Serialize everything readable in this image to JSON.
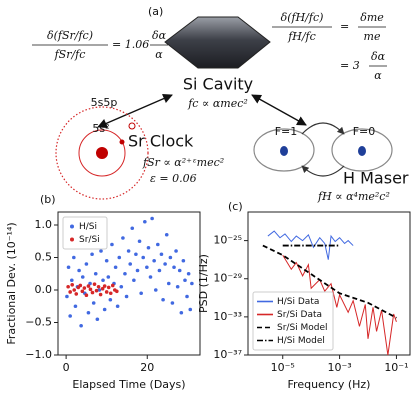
{
  "diagram": {
    "panel_label": "(a)",
    "cavity": {
      "label": "Si Cavity",
      "formula": "fc ∝ αmec²"
    },
    "sr_equation": {
      "lhs_num": "δ(fSr/fc)",
      "lhs_den": "fSr/fc",
      "coef": "= 1.06",
      "rhs_num": "δα",
      "rhs_den": "α"
    },
    "h_equation": {
      "lhs_num": "δ(fH/fc)",
      "lhs_den": "fH/fc",
      "eq": "=",
      "rhs_num": "δme",
      "rhs_den": "me",
      "coef": "= 3",
      "rhs2_num": "δα",
      "rhs2_den": "α"
    },
    "sr_clock": {
      "label": "Sr Clock",
      "formula": "fSr ∝ α²⁺ᵋmec²",
      "epsilon": "ε = 0.06",
      "outer_orbital": "5s5p",
      "inner_orbital": "5s²"
    },
    "h_maser": {
      "label": "H Maser",
      "formula": "fH ∝ α⁴me²c²",
      "state_1": "F=1",
      "state_0": "F=0"
    }
  },
  "chart_data": [
    {
      "type": "scatter",
      "panel_label": "(b)",
      "x_label": "Elapsed Time (Days)",
      "y_label": "Fractional Dev. (10⁻¹⁴)",
      "xlim": [
        -2,
        33
      ],
      "xticks": [
        0,
        20
      ],
      "ylim": [
        -1.0,
        1.2
      ],
      "yticks": [
        {
          "value": -1.0,
          "label": "−1.0"
        },
        {
          "value": -0.5,
          "label": "−0.5"
        },
        {
          "value": 0.0,
          "label": "0.0"
        },
        0.5,
        {
          "value": 1.0,
          "label": "1.0"
        }
      ],
      "legend": "upper left",
      "series": [
        {
          "name": "H/Si",
          "color": "#4169e1",
          "x": [
            0.2,
            0.6,
            1.0,
            1.4,
            1.9,
            2.3,
            2.8,
            3.2,
            3.7,
            4.1,
            4.6,
            5.0,
            5.5,
            5.9,
            6.4,
            6.8,
            7.3,
            7.7,
            8.2,
            8.6,
            9.1,
            9.5,
            10.0,
            10.4,
            10.9,
            11.3,
            11.8,
            12.2,
            12.7,
            13.1,
            13.6,
            14.0,
            14.5,
            14.9,
            15.4,
            15.8,
            16.3,
            16.7,
            17.2,
            17.6,
            18.1,
            18.5,
            19.0,
            19.4,
            19.9,
            20.3,
            20.8,
            21.2,
            21.7,
            22.1,
            22.6,
            23.0,
            23.5,
            23.9,
            24.4,
            24.8,
            25.3,
            25.7,
            26.2,
            26.6,
            27.1,
            27.5,
            28.0,
            28.4,
            28.9,
            29.3,
            29.8,
            30.2,
            30.6,
            31.0
          ],
          "values": [
            -0.1,
            0.35,
            -0.4,
            0.15,
            0.5,
            -0.25,
            0.05,
            0.3,
            -0.55,
            0.2,
            -0.05,
            0.4,
            -0.35,
            0.1,
            0.55,
            -0.2,
            0.25,
            -0.45,
            0.0,
            0.6,
            0.15,
            -0.3,
            0.45,
            0.2,
            -0.15,
            0.7,
            0.1,
            0.35,
            -0.25,
            0.5,
            0.05,
            0.8,
            0.25,
            -0.1,
            0.6,
            0.4,
            0.95,
            0.15,
            0.55,
            0.3,
            0.75,
            -0.05,
            0.5,
            1.05,
            0.35,
            0.65,
            0.2,
            1.1,
            0.45,
            0.0,
            0.7,
            0.3,
            0.55,
            -0.15,
            0.4,
            0.85,
            0.1,
            0.5,
            -0.2,
            0.35,
            0.6,
            0.05,
            0.3,
            -0.35,
            0.45,
            0.15,
            -0.1,
            0.25,
            -0.3,
            0.1
          ]
        },
        {
          "name": "Sr/Si",
          "color": "#d62728",
          "x": [
            0.5,
            1.0,
            1.5,
            2.0,
            2.5,
            3.0,
            3.5,
            4.0,
            4.5,
            5.0,
            5.5,
            6.0,
            6.5,
            7.0,
            7.5,
            8.0,
            8.5,
            9.0,
            9.5,
            10.0,
            10.5,
            11.0,
            11.5,
            12.0,
            12.5
          ],
          "values": [
            0.05,
            -0.03,
            0.08,
            0.0,
            -0.06,
            0.04,
            0.07,
            -0.02,
            0.03,
            -0.08,
            0.06,
            0.01,
            -0.04,
            0.09,
            -0.01,
            0.05,
            -0.07,
            0.02,
            0.06,
            -0.03,
            0.04,
            -0.05,
            0.07,
            0.0,
            -0.02
          ]
        }
      ]
    },
    {
      "type": "line",
      "panel_label": "(c)",
      "x_label": "Frequency (Hz)",
      "y_label": "PSD (1/Hz)",
      "xscale": "log",
      "yscale": "log",
      "xlim": [
        6e-07,
        0.3
      ],
      "xticks": [
        {
          "value": 1e-05,
          "label": "10⁻⁵"
        },
        {
          "value": 0.001,
          "label": "10⁻³"
        },
        {
          "value": 0.1,
          "label": "10⁻¹"
        }
      ],
      "ylim": [
        1e-37,
        1e-22
      ],
      "yticks": [
        {
          "value": 1e-37,
          "label": "10⁻³⁷"
        },
        {
          "value": 1e-33,
          "label": "10⁻³³"
        },
        {
          "value": 1e-29,
          "label": "10⁻²⁹"
        },
        {
          "value": 1e-25,
          "label": "10⁻²⁵"
        }
      ],
      "legend": "lower left",
      "series": [
        {
          "name": "H/Si Data",
          "color": "#4169e1",
          "linestyle": "solid",
          "x": [
            3e-06,
            5e-06,
            8e-06,
            1.2e-05,
            2e-05,
            3e-05,
            5e-05,
            8e-05,
            0.00012,
            0.0002,
            0.0003,
            0.0004,
            0.0005,
            0.0007,
            0.001,
            0.0015,
            0.002,
            0.003
          ],
          "values": [
            3e-25,
            1e-24,
            2e-25,
            5e-25,
            8e-26,
            3e-25,
            1e-25,
            4e-25,
            2e-26,
            2e-25,
            5e-26,
            1e-27,
            3e-25,
            8e-26,
            2e-25,
            5e-26,
            1e-25,
            3e-26
          ]
        },
        {
          "name": "Sr/Si Data",
          "color": "#d62728",
          "linestyle": "solid",
          "x": [
            1e-05,
            2e-05,
            3e-05,
            5e-05,
            8e-05,
            0.0001,
            0.0002,
            0.0003,
            0.0005,
            0.0008,
            0.001,
            0.002,
            0.003,
            0.005,
            0.008,
            0.01,
            0.015,
            0.02,
            0.03,
            0.05,
            0.08,
            0.1
          ],
          "values": [
            3e-27,
            1e-28,
            5e-28,
            2e-29,
            3e-28,
            1e-30,
            8e-30,
            5e-31,
            3e-30,
            1e-32,
            2e-31,
            3e-33,
            5e-32,
            1e-34,
            2e-32,
            5e-36,
            1e-32,
            3e-35,
            5e-33,
            1e-37,
            2e-33,
            3e-34
          ]
        },
        {
          "name": "Sr/Si Model",
          "color": "#000000",
          "linestyle": "dashed",
          "x": [
            2e-06,
            1e-05,
            0.0001,
            0.001,
            0.01,
            0.1
          ],
          "values": [
            3e-26,
            3e-27,
            3e-29,
            3e-31,
            3e-32,
            8e-34
          ]
        },
        {
          "name": "H/Si Model",
          "color": "#000000",
          "linestyle": "dashdot",
          "x": [
            1e-05,
            0.001
          ],
          "values": [
            3e-26,
            3e-26
          ]
        }
      ]
    }
  ]
}
